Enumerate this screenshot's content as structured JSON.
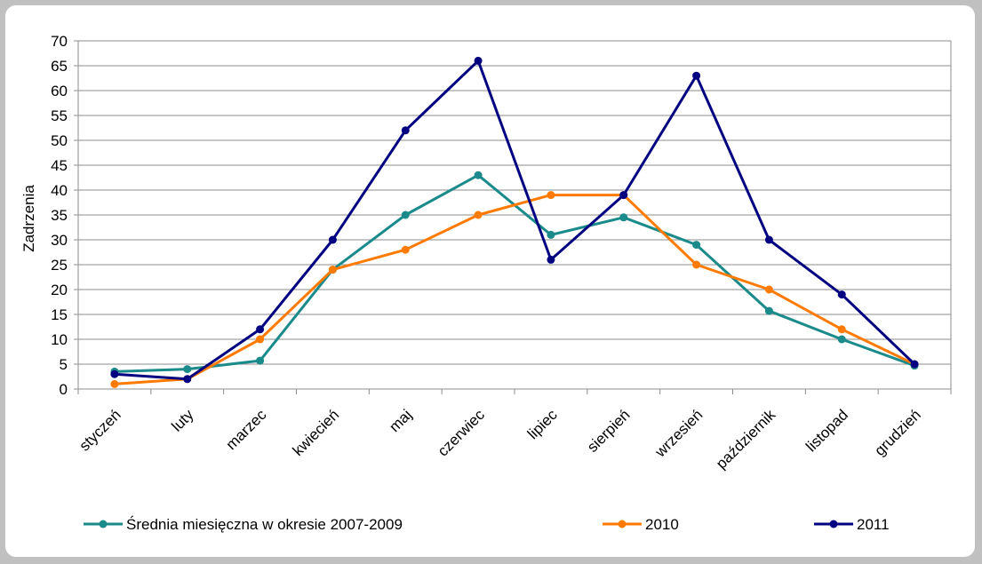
{
  "chart_data": {
    "type": "line",
    "title": "",
    "xlabel": "",
    "ylabel": "Zadrzenia",
    "ylim": [
      0,
      70
    ],
    "ytick_step": 5,
    "grid": true,
    "legend_position": "bottom",
    "categories": [
      "styczeń",
      "luty",
      "marzec",
      "kwiecień",
      "maj",
      "czerwiec",
      "lipiec",
      "sierpień",
      "wrzesień",
      "październik",
      "listopad",
      "grudzień"
    ],
    "series": [
      {
        "name": "Średnia miesięczna w okresie 2007-2009",
        "color": "#1a8a8a",
        "values": [
          3.5,
          4,
          5.7,
          24,
          35,
          43,
          31,
          34.5,
          29,
          15.7,
          10,
          4.7
        ]
      },
      {
        "name": "2010",
        "color": "#ff7b00",
        "values": [
          1,
          2,
          10,
          24,
          28,
          35,
          39,
          39,
          25,
          20,
          12,
          5
        ]
      },
      {
        "name": "2011",
        "color": "#000080",
        "values": [
          3,
          2,
          12,
          30,
          52,
          66,
          26,
          39,
          63,
          30,
          19,
          5
        ]
      }
    ]
  }
}
